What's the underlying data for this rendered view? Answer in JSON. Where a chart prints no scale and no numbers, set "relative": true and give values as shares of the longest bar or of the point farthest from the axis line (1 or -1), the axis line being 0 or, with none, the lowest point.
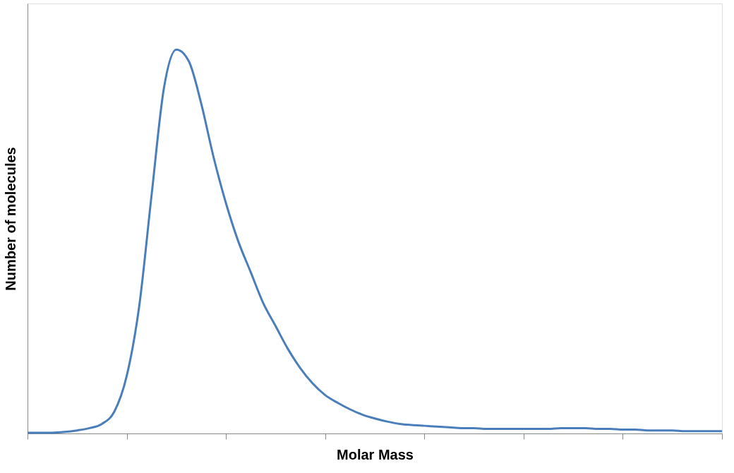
{
  "chart_data": {
    "type": "line",
    "relative": true,
    "xlabel": "Molar Mass",
    "ylabel": "Number of molecules",
    "tick_labels": false,
    "grid": false,
    "marker": "none",
    "line_style": "solid",
    "categories": [
      null,
      null,
      null,
      null,
      null,
      null,
      null,
      null,
      null,
      null,
      null,
      null,
      null,
      null,
      null,
      null,
      null,
      null,
      null,
      null,
      null,
      null,
      null,
      null,
      null,
      null,
      null,
      null,
      null,
      null,
      null,
      null,
      null,
      null,
      null,
      null,
      null,
      null,
      null,
      null,
      null,
      null,
      null,
      null,
      null,
      null,
      null,
      null,
      null,
      null,
      null,
      null,
      null,
      null,
      null,
      null,
      null
    ],
    "series": [
      {
        "color": "#4a7ebb",
        "values": [
          0.002,
          0.002,
          0.002,
          0.004,
          0.008,
          0.014,
          0.025,
          0.057,
          0.15,
          0.33,
          0.62,
          0.9,
          1.0,
          0.97,
          0.86,
          0.72,
          0.6,
          0.5,
          0.42,
          0.34,
          0.28,
          0.22,
          0.17,
          0.13,
          0.1,
          0.08,
          0.063,
          0.049,
          0.039,
          0.031,
          0.025,
          0.022,
          0.02,
          0.018,
          0.016,
          0.014,
          0.014,
          0.012,
          0.012,
          0.012,
          0.012,
          0.012,
          0.012,
          0.014,
          0.014,
          0.014,
          0.012,
          0.012,
          0.01,
          0.01,
          0.008,
          0.008,
          0.008,
          0.006,
          0.006,
          0.006,
          0.006
        ]
      }
    ]
  }
}
